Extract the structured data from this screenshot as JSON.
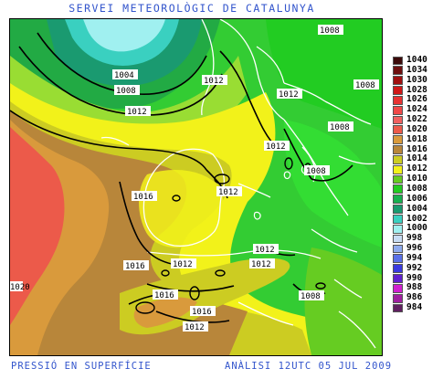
{
  "header": {
    "title": "SERVEI METEOROLÒGIC DE CATALUNYA"
  },
  "footer": {
    "product": "PRESSIÓ EN SUPERFÍCIE",
    "analysis": "ANÀLISI 12UTC 05 JUL 2009"
  },
  "isobar_labels": [
    "1008",
    "1004",
    "1008",
    "1012",
    "1012",
    "1012",
    "1008",
    "1008",
    "1012",
    "1008",
    "1016",
    "1012",
    "1012",
    "1016",
    "1012",
    "1012",
    "1016",
    "1016",
    "1012",
    "1008",
    "1020"
  ],
  "legend": {
    "items": [
      {
        "label": "1040",
        "color": "#3c0a0a"
      },
      {
        "label": "1034",
        "color": "#6e0f0f"
      },
      {
        "label": "1030",
        "color": "#a01010"
      },
      {
        "label": "1028",
        "color": "#d01818"
      },
      {
        "label": "1026",
        "color": "#e83232"
      },
      {
        "label": "1024",
        "color": "#f04848"
      },
      {
        "label": "1022",
        "color": "#f06060"
      },
      {
        "label": "1020",
        "color": "#ec5a4a"
      },
      {
        "label": "1018",
        "color": "#d99a3c"
      },
      {
        "label": "1016",
        "color": "#b8863a"
      },
      {
        "label": "1014",
        "color": "#cccc22"
      },
      {
        "label": "1012",
        "color": "#f2f21a"
      },
      {
        "label": "1010",
        "color": "#66cc22"
      },
      {
        "label": "1008",
        "color": "#22cc22"
      },
      {
        "label": "1006",
        "color": "#18b050"
      },
      {
        "label": "1004",
        "color": "#1a9a70"
      },
      {
        "label": "1002",
        "color": "#3ad0c0"
      },
      {
        "label": "1000",
        "color": "#a0f0f0"
      },
      {
        "label": "998",
        "color": "#c8dcf4"
      },
      {
        "label": "996",
        "color": "#8eaaee"
      },
      {
        "label": "994",
        "color": "#5a70e8"
      },
      {
        "label": "992",
        "color": "#3a3ae0"
      },
      {
        "label": "990",
        "color": "#6020d0"
      },
      {
        "label": "988",
        "color": "#d020d0"
      },
      {
        "label": "986",
        "color": "#a020a0"
      },
      {
        "label": "984",
        "color": "#602060"
      }
    ]
  }
}
